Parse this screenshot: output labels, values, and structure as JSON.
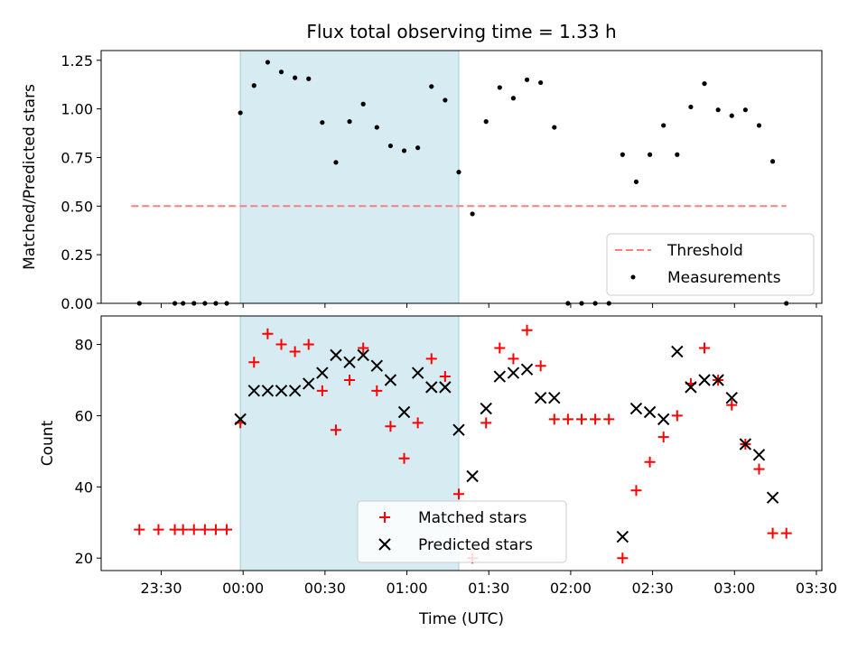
{
  "figure": {
    "title": "Flux total observing time = 1.33 h"
  },
  "chart_data": [
    {
      "type": "scatter",
      "title": "Flux total observing time = 1.33 h",
      "xlabel": "",
      "ylabel": "Matched/Predicted stars",
      "xlim": [
        "23:08",
        "03:32"
      ],
      "ylim": [
        0,
        1.3
      ],
      "xticks": [
        "23:30",
        "00:00",
        "00:30",
        "01:00",
        "01:30",
        "02:00",
        "02:30",
        "03:00",
        "03:30"
      ],
      "yticks": [
        "0.00",
        "0.25",
        "0.50",
        "0.75",
        "1.00",
        "1.25"
      ],
      "shaded_span": {
        "x0": "23:59",
        "x1": "01:19",
        "color": "#add8e6"
      },
      "legend_position": "lower right",
      "series": [
        {
          "name": "Threshold",
          "style": "dashed-line",
          "color": "#ff7f7f",
          "x": [
            "23:19",
            "03:19"
          ],
          "y": [
            0.5,
            0.5
          ]
        },
        {
          "name": "Measurements",
          "style": "dot",
          "color": "#000000",
          "x": [
            "23:22",
            "23:35",
            "23:38",
            "23:42",
            "23:46",
            "23:50",
            "23:54",
            "23:59",
            "00:04",
            "00:09",
            "00:14",
            "00:19",
            "00:24",
            "00:29",
            "00:34",
            "00:39",
            "00:44",
            "00:49",
            "00:54",
            "00:59",
            "01:04",
            "01:09",
            "01:14",
            "01:19",
            "01:24",
            "01:29",
            "01:34",
            "01:39",
            "01:44",
            "01:49",
            "01:54",
            "01:59",
            "02:04",
            "02:09",
            "02:14",
            "02:19",
            "02:24",
            "02:29",
            "02:34",
            "02:39",
            "02:44",
            "02:49",
            "02:54",
            "02:59",
            "03:04",
            "03:09",
            "03:14",
            "03:19"
          ],
          "y": [
            0,
            0,
            0,
            0,
            0,
            0,
            0,
            0.98,
            1.12,
            1.24,
            1.19,
            1.16,
            1.155,
            0.93,
            0.725,
            0.935,
            1.025,
            0.905,
            0.81,
            0.785,
            0.8,
            1.115,
            1.045,
            0.675,
            0.46,
            0.935,
            1.11,
            1.055,
            1.15,
            1.135,
            0.905,
            0,
            0,
            0,
            0,
            0.765,
            0.625,
            0.765,
            0.915,
            0.765,
            1.01,
            1.13,
            0.995,
            0.965,
            0.995,
            0.915,
            0.73,
            0
          ]
        }
      ]
    },
    {
      "type": "scatter",
      "xlabel": "Time (UTC)",
      "ylabel": "Count",
      "xlim": [
        "23:08",
        "03:32"
      ],
      "ylim": [
        16.5,
        88
      ],
      "xticks": [
        "23:30",
        "00:00",
        "00:30",
        "01:00",
        "01:30",
        "02:00",
        "02:30",
        "03:00",
        "03:30"
      ],
      "yticks": [
        "20",
        "40",
        "60",
        "80"
      ],
      "shaded_span": {
        "x0": "23:59",
        "x1": "01:19",
        "color": "#add8e6"
      },
      "legend_position": "lower center",
      "series": [
        {
          "name": "Matched stars",
          "marker": "+",
          "color": "#ff0000",
          "x": [
            "23:22",
            "23:29",
            "23:35",
            "23:38",
            "23:42",
            "23:46",
            "23:50",
            "23:54",
            "23:59",
            "00:04",
            "00:09",
            "00:14",
            "00:19",
            "00:24",
            "00:29",
            "00:34",
            "00:39",
            "00:44",
            "00:49",
            "00:54",
            "00:59",
            "01:04",
            "01:09",
            "01:14",
            "01:19",
            "01:24",
            "01:29",
            "01:34",
            "01:39",
            "01:44",
            "01:49",
            "01:54",
            "01:59",
            "02:04",
            "02:09",
            "02:14",
            "02:19",
            "02:24",
            "02:29",
            "02:34",
            "02:39",
            "02:44",
            "02:49",
            "02:54",
            "02:59",
            "03:04",
            "03:09",
            "03:14",
            "03:19"
          ],
          "y": [
            28,
            28,
            28,
            28,
            28,
            28,
            28,
            28,
            58,
            75,
            83,
            80,
            78,
            80,
            67,
            56,
            70,
            79,
            67,
            57,
            48,
            58,
            76,
            71,
            38,
            20,
            58,
            79,
            76,
            84,
            74,
            59,
            59,
            59,
            59,
            59,
            20,
            39,
            47,
            54,
            60,
            69,
            79,
            70,
            63,
            52,
            45,
            27,
            27
          ]
        },
        {
          "name": "Predicted stars",
          "marker": "x",
          "color": "#000000",
          "x": [
            "23:59",
            "00:04",
            "00:09",
            "00:14",
            "00:19",
            "00:24",
            "00:29",
            "00:34",
            "00:39",
            "00:44",
            "00:49",
            "00:54",
            "00:59",
            "01:04",
            "01:09",
            "01:14",
            "01:19",
            "01:24",
            "01:29",
            "01:34",
            "01:39",
            "01:44",
            "01:49",
            "01:54",
            "02:19",
            "02:24",
            "02:29",
            "02:34",
            "02:39",
            "02:44",
            "02:49",
            "02:54",
            "02:59",
            "03:04",
            "03:09",
            "03:14"
          ],
          "y": [
            59,
            67,
            67,
            67,
            67,
            69,
            72,
            77,
            75,
            77,
            74,
            70,
            61,
            72,
            68,
            68,
            56,
            43,
            62,
            71,
            72,
            73,
            65,
            65,
            26,
            62,
            61,
            59,
            78,
            68,
            70,
            70,
            65,
            52,
            49,
            37
          ]
        }
      ]
    }
  ]
}
